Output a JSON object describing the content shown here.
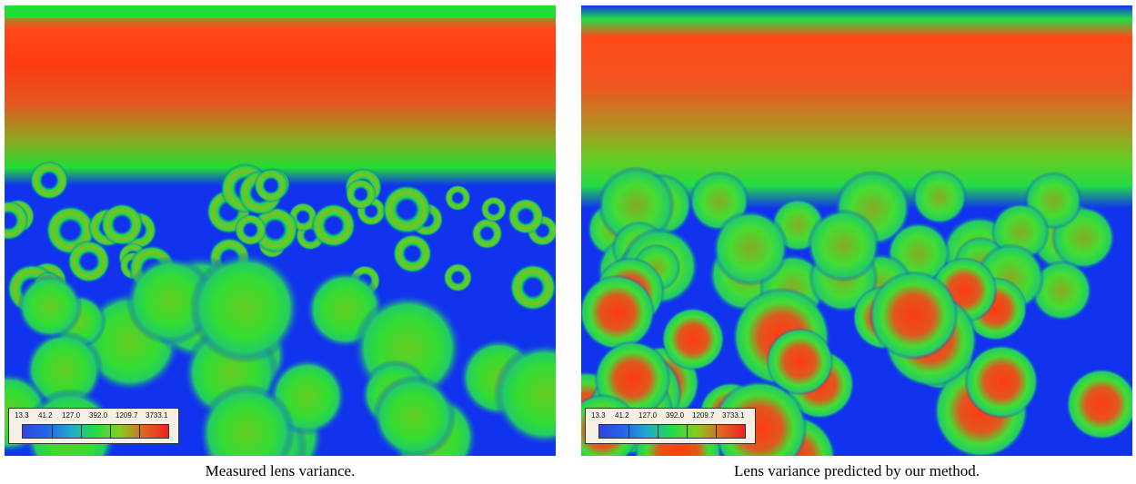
{
  "figure": {
    "panels": [
      {
        "caption": "Measured lens variance.",
        "legend_labels": [
          "13.3",
          "41.2",
          "127.0",
          "392.0",
          "1209.7",
          "3733.1"
        ]
      },
      {
        "caption": "Lens variance predicted by our method.",
        "legend_labels": [
          "13.3",
          "41.2",
          "127.0",
          "392.0",
          "1209.7",
          "3733.1"
        ]
      }
    ],
    "colormap": [
      "#3344dd",
      "#2266ee",
      "#22aacc",
      "#22dd44",
      "#88cc22",
      "#dd6622",
      "#ee2222"
    ]
  }
}
